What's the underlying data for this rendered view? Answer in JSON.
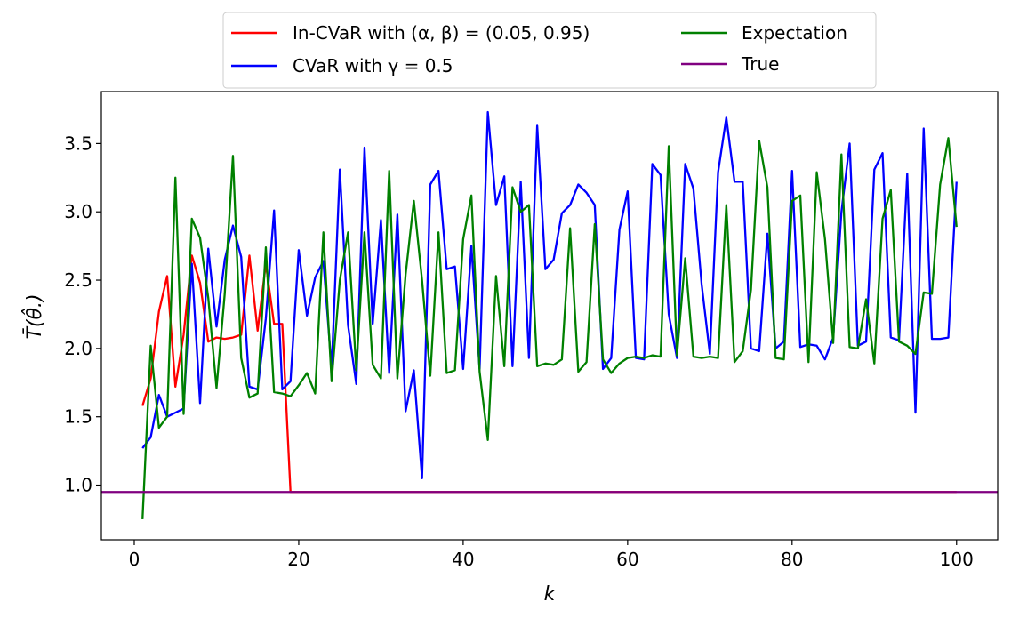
{
  "chart_data": {
    "type": "line",
    "title": "",
    "xlabel": "k",
    "ylabel": "T̄(θ̂.)",
    "xlim": [
      -4,
      105
    ],
    "ylim": [
      0.6,
      3.88
    ],
    "xticks": [
      0,
      20,
      40,
      60,
      80,
      100
    ],
    "yticks": [
      1.0,
      1.5,
      2.0,
      2.5,
      3.0,
      3.5
    ],
    "xtick_labels": [
      "0",
      "20",
      "40",
      "60",
      "80",
      "100"
    ],
    "ytick_labels": [
      "1.0",
      "1.5",
      "2.0",
      "2.5",
      "3.0",
      "3.5"
    ],
    "grid": false,
    "legend": {
      "placement": "top-center-outside",
      "columns": 2
    },
    "series": [
      {
        "name": "In-CVaR with (α, β) = (0.05, 0.95)",
        "color": "#ff0000",
        "x": [
          1,
          2,
          3,
          4,
          5,
          6,
          7,
          8,
          9,
          10,
          11,
          12,
          13,
          14,
          15,
          16,
          17,
          18,
          19,
          20,
          21,
          22,
          23,
          24,
          25,
          26,
          27,
          28,
          29,
          30,
          31,
          32,
          33,
          34,
          35,
          36,
          37,
          38,
          39,
          40,
          41,
          42,
          43,
          44,
          45,
          46,
          47,
          48,
          49,
          50,
          51,
          52,
          53,
          54,
          55,
          56,
          57,
          58,
          59,
          60,
          61,
          62,
          63,
          64,
          65,
          66,
          67,
          68,
          69,
          70,
          71,
          72,
          73,
          74,
          75,
          76,
          77,
          78,
          79,
          80,
          81,
          82,
          83,
          84,
          85,
          86,
          87,
          88,
          89,
          90,
          91,
          92,
          93,
          94,
          95,
          96,
          97,
          98,
          99,
          100
        ],
        "y": [
          1.58,
          1.78,
          2.27,
          2.53,
          1.72,
          2.1,
          2.68,
          2.48,
          2.05,
          2.08,
          2.07,
          2.08,
          2.1,
          2.68,
          2.13,
          2.62,
          2.18,
          2.18,
          0.95,
          0.95,
          0.95,
          0.95,
          0.95,
          0.95,
          0.95,
          0.95,
          0.95,
          0.95,
          0.95,
          0.95,
          0.95,
          0.95,
          0.95,
          0.95,
          0.95,
          0.95,
          0.95,
          0.95,
          0.95,
          0.95,
          0.95,
          0.95,
          0.95,
          0.95,
          0.95,
          0.95,
          0.95,
          0.95,
          0.95,
          0.95,
          0.95,
          0.95,
          0.95,
          0.95,
          0.95,
          0.95,
          0.95,
          0.95,
          0.95,
          0.95,
          0.95,
          0.95,
          0.95,
          0.95,
          0.95,
          0.95,
          0.95,
          0.95,
          0.95,
          0.95,
          0.95,
          0.95,
          0.95,
          0.95,
          0.95,
          0.95,
          0.95,
          0.95,
          0.95,
          0.95,
          0.95,
          0.95,
          0.95,
          0.95,
          0.95,
          0.95,
          0.95,
          0.95,
          0.95,
          0.95,
          0.95,
          0.95,
          0.95,
          0.95,
          0.95,
          0.95,
          0.95,
          0.95,
          0.95,
          0.95
        ]
      },
      {
        "name": "CVaR with γ = 0.5",
        "color": "#0000ff",
        "x": [
          1,
          2,
          3,
          4,
          5,
          6,
          7,
          8,
          9,
          10,
          11,
          12,
          13,
          14,
          15,
          16,
          17,
          18,
          19,
          20,
          21,
          22,
          23,
          24,
          25,
          26,
          27,
          28,
          29,
          30,
          31,
          32,
          33,
          34,
          35,
          36,
          37,
          38,
          39,
          40,
          41,
          42,
          43,
          44,
          45,
          46,
          47,
          48,
          49,
          50,
          51,
          52,
          53,
          54,
          55,
          56,
          57,
          58,
          59,
          60,
          61,
          62,
          63,
          64,
          65,
          66,
          67,
          68,
          69,
          70,
          71,
          72,
          73,
          74,
          75,
          76,
          77,
          78,
          79,
          80,
          81,
          82,
          83,
          84,
          85,
          86,
          87,
          88,
          89,
          90,
          91,
          92,
          93,
          94,
          95,
          96,
          97,
          98,
          99,
          100
        ],
        "y": [
          1.27,
          1.35,
          1.66,
          1.5,
          1.53,
          1.56,
          2.62,
          1.6,
          2.73,
          2.16,
          2.65,
          2.9,
          2.67,
          1.72,
          1.7,
          2.22,
          3.01,
          1.7,
          1.76,
          2.72,
          2.24,
          2.52,
          2.64,
          1.85,
          3.31,
          2.17,
          1.74,
          3.47,
          2.18,
          2.94,
          1.82,
          2.98,
          1.54,
          1.84,
          1.05,
          3.2,
          3.3,
          2.58,
          2.6,
          1.85,
          2.75,
          1.85,
          3.73,
          3.05,
          3.26,
          1.87,
          3.22,
          1.93,
          3.63,
          2.58,
          2.65,
          2.99,
          3.05,
          3.2,
          3.14,
          3.05,
          1.85,
          1.93,
          2.87,
          3.15,
          1.93,
          1.92,
          3.35,
          3.27,
          2.25,
          1.93,
          3.35,
          3.17,
          2.47,
          1.96,
          3.29,
          3.69,
          3.22,
          3.22,
          2.0,
          1.98,
          2.84,
          2.0,
          2.05,
          3.3,
          2.01,
          2.03,
          2.02,
          1.92,
          2.08,
          3.0,
          3.5,
          2.02,
          2.05,
          3.31,
          3.43,
          2.08,
          2.06,
          3.28,
          1.53,
          3.61,
          2.07,
          2.07,
          2.08,
          3.22
        ]
      },
      {
        "name": "Expectation",
        "color": "#008000",
        "x": [
          1,
          2,
          3,
          4,
          5,
          6,
          7,
          8,
          9,
          10,
          11,
          12,
          13,
          14,
          15,
          16,
          17,
          18,
          19,
          20,
          21,
          22,
          23,
          24,
          25,
          26,
          27,
          28,
          29,
          30,
          31,
          32,
          33,
          34,
          35,
          36,
          37,
          38,
          39,
          40,
          41,
          42,
          43,
          44,
          45,
          46,
          47,
          48,
          49,
          50,
          51,
          52,
          53,
          54,
          55,
          56,
          57,
          58,
          59,
          60,
          61,
          62,
          63,
          64,
          65,
          66,
          67,
          68,
          69,
          70,
          71,
          72,
          73,
          74,
          75,
          76,
          77,
          78,
          79,
          80,
          81,
          82,
          83,
          84,
          85,
          86,
          87,
          88,
          89,
          90,
          91,
          92,
          93,
          94,
          95,
          96,
          97,
          98,
          99,
          100
        ],
        "y": [
          0.75,
          2.02,
          1.42,
          1.5,
          3.25,
          1.52,
          2.95,
          2.81,
          2.37,
          1.71,
          2.4,
          3.41,
          1.93,
          1.64,
          1.67,
          2.74,
          1.68,
          1.67,
          1.65,
          1.73,
          1.82,
          1.67,
          2.85,
          1.76,
          2.5,
          2.85,
          1.84,
          2.85,
          1.88,
          1.78,
          3.3,
          1.78,
          2.54,
          3.08,
          2.5,
          1.8,
          2.85,
          1.82,
          1.84,
          2.8,
          3.12,
          1.83,
          1.33,
          2.53,
          1.87,
          3.18,
          3.0,
          3.05,
          1.87,
          1.89,
          1.88,
          1.92,
          2.88,
          1.83,
          1.9,
          2.91,
          1.92,
          1.82,
          1.89,
          1.93,
          1.94,
          1.93,
          1.95,
          1.94,
          3.48,
          1.95,
          2.66,
          1.94,
          1.93,
          1.94,
          1.93,
          3.05,
          1.9,
          1.98,
          2.43,
          3.52,
          3.18,
          1.93,
          1.92,
          3.08,
          3.12,
          1.9,
          3.29,
          2.8,
          2.04,
          3.42,
          2.01,
          2.0,
          2.36,
          1.89,
          2.95,
          3.16,
          2.05,
          2.02,
          1.96,
          2.41,
          2.4,
          3.2,
          3.54,
          2.89
        ]
      },
      {
        "name": "True",
        "color": "#800080",
        "x": [
          -4,
          105
        ],
        "y": [
          0.95,
          0.95
        ]
      }
    ]
  }
}
